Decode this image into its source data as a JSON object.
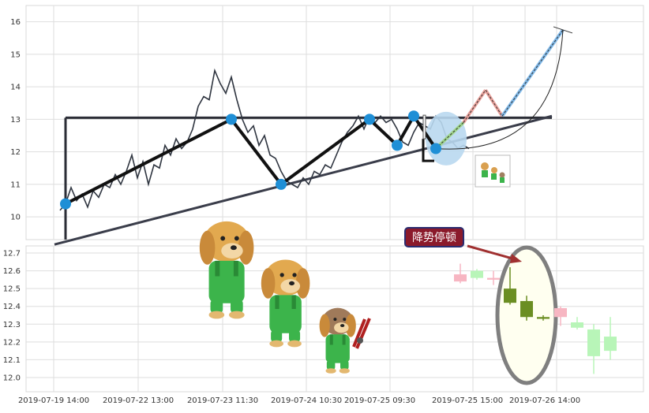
{
  "chart_data": [
    {
      "type": "line",
      "panel": "top",
      "title": "",
      "xlabel": "",
      "ylabel": "",
      "ylim": [
        9.3,
        16.5
      ],
      "yticks": [
        10,
        11,
        12,
        13,
        14,
        15,
        16
      ],
      "grid": true,
      "x_index_range": [
        0,
        100
      ],
      "price_series": {
        "x": [
          0,
          1,
          2,
          3,
          4,
          5,
          6,
          7,
          8,
          9,
          10,
          11,
          12,
          13,
          14,
          15,
          16,
          17,
          18,
          19,
          20,
          21,
          22,
          23,
          24,
          25,
          26,
          27,
          28,
          29,
          30,
          31,
          32,
          33,
          34,
          35,
          36,
          37,
          38,
          39,
          40,
          41,
          42,
          43,
          44,
          45,
          46,
          47,
          48,
          49,
          50,
          51,
          52,
          53,
          54,
          55,
          56,
          57,
          58,
          59,
          60,
          61,
          62,
          63,
          64,
          65,
          66,
          67,
          68,
          69,
          70,
          71,
          72,
          73,
          74
        ],
        "values": [
          10.2,
          10.4,
          10.9,
          10.5,
          10.7,
          10.3,
          10.8,
          10.6,
          11.0,
          10.9,
          11.3,
          11.0,
          11.4,
          11.9,
          11.2,
          11.7,
          11.0,
          11.6,
          11.5,
          12.2,
          11.9,
          12.4,
          12.1,
          12.3,
          12.7,
          13.4,
          13.7,
          13.6,
          14.5,
          14.1,
          13.8,
          14.3,
          13.6,
          13.0,
          12.6,
          12.8,
          12.2,
          12.5,
          11.9,
          11.8,
          11.4,
          11.1,
          11.0,
          10.9,
          11.2,
          11.0,
          11.4,
          11.3,
          11.6,
          11.5,
          11.9,
          12.3,
          12.6,
          12.8,
          13.1,
          12.7,
          13.1,
          12.9,
          13.1,
          12.9,
          13.0,
          12.7,
          12.3,
          12.2,
          12.6,
          12.9,
          12.8,
          12.7,
          13.1,
          12.9,
          12.4,
          12.3,
          12.1,
          12.2,
          12.1
        ]
      },
      "pattern_path": {
        "x": [
          1,
          31,
          40,
          56,
          61,
          64,
          68
        ],
        "values": [
          10.4,
          13.0,
          11.0,
          13.0,
          12.2,
          13.1,
          12.1
        ]
      },
      "pattern_points": {
        "x": [
          1,
          31,
          40,
          56,
          61,
          64,
          68
        ],
        "values": [
          10.4,
          13.0,
          11.0,
          13.0,
          12.2,
          13.1,
          12.1
        ]
      },
      "resistance_line": {
        "x": [
          1,
          89
        ],
        "values": [
          13.05,
          13.05
        ]
      },
      "support_line": {
        "x": [
          -1,
          89
        ],
        "values": [
          9.15,
          13.1
        ]
      },
      "left_vertical": {
        "x": [
          1,
          1
        ],
        "values": [
          13.05,
          9.3
        ]
      },
      "projection": {
        "x": [
          68,
          73,
          77,
          80,
          91
        ],
        "values": [
          12.1,
          12.9,
          13.9,
          13.1,
          15.75
        ]
      },
      "projection_arc": {
        "x": [
          68,
          91
        ],
        "values": [
          12.1,
          15.75
        ]
      },
      "highlight_circle": {
        "x": 69,
        "values": 12.6
      }
    },
    {
      "type": "candlestick",
      "panel": "bottom",
      "title": "",
      "xlabel": "",
      "ylabel": "",
      "ylim": [
        11.92,
        12.74
      ],
      "yticks": [
        12.0,
        12.1,
        12.2,
        12.3,
        12.4,
        12.5,
        12.6,
        12.7
      ],
      "grid": true,
      "x_tick_labels": [
        "2019-07-19 14:00",
        "2019-07-22 13:00",
        "2019-07-23 11:30",
        "2019-07-24 10:30",
        "2019-07-25 09:30",
        "2019-07-25 15:00",
        "2019-07-26 14:00"
      ],
      "candles": {
        "x": [
          64,
          66,
          68,
          69,
          70,
          72,
          74,
          76,
          78,
          80
        ],
        "open": [
          12.54,
          12.56,
          12.55,
          12.42,
          12.43,
          12.34,
          12.34,
          12.28,
          12.12,
          12.15
        ],
        "close": [
          12.58,
          12.6,
          12.56,
          12.5,
          12.34,
          12.33,
          12.39,
          12.31,
          12.27,
          12.23
        ],
        "high": [
          12.64,
          12.61,
          12.6,
          12.62,
          12.46,
          12.35,
          12.4,
          12.34,
          12.3,
          12.34
        ],
        "low": [
          12.53,
          12.55,
          12.52,
          12.41,
          12.32,
          12.32,
          12.29,
          12.27,
          12.02,
          12.1
        ],
        "colors": [
          "#f7b6c2",
          "#b8f5b8",
          "#f7b6c2",
          "#6b8e23",
          "#6b8e23",
          "#6b8e23",
          "#f7b6c2",
          "#b8f5b8",
          "#b8f5b8",
          "#b8f5b8"
        ]
      },
      "annotation": {
        "text": "降势停顿",
        "x": 71,
        "value": 12.56
      },
      "highlight_ellipse": {
        "x": 70,
        "values": 12.34
      }
    }
  ],
  "colors": {
    "price_line": "#2f3540",
    "pattern_path": "#111111",
    "pattern_point": "#1f8fd6",
    "level_lines": "#2b2d36",
    "support_line": "#3a3d4a",
    "projection_red": "#e8a09a",
    "projection_green": "#9fd68a",
    "projection_blue": "#7fb8e8",
    "highlight_circle": "#b9d8f0",
    "annotation_box": "#8b1a2b",
    "annotation_border": "#2a2c70",
    "arrow": "#a03030",
    "ellipse_fill": "#fffff0",
    "ellipse_stroke": "#7f7f7f"
  },
  "decorations": [
    "golden-dog-mascot",
    "golden-dog-mascot",
    "dog-with-pliers-mascot"
  ]
}
